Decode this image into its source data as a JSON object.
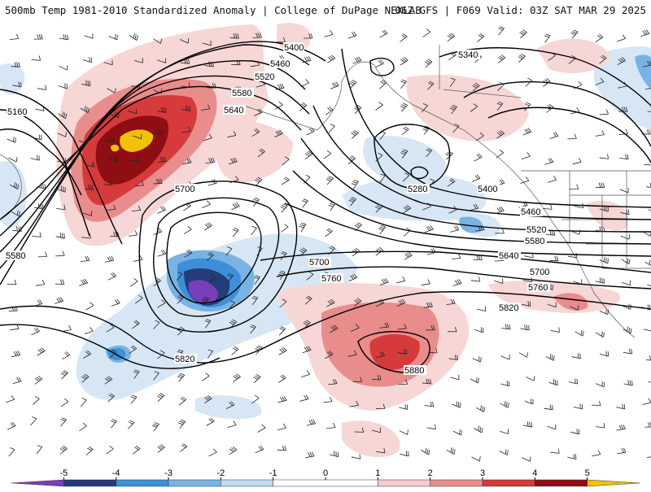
{
  "header": {
    "title_left": "500mb Temp 1981-2010 Standardized Anomaly | College of DuPage NEXLAB",
    "title_right": "06Z GFS | F069 Valid: 03Z SAT MAR 29 2025"
  },
  "contour_labels": [
    "5400",
    "5460",
    "5520",
    "5580",
    "5640",
    "5160",
    "5700",
    "5580",
    "5700",
    "5760",
    "5820",
    "5340",
    "5280",
    "5400",
    "5460",
    "5520",
    "5580",
    "5640",
    "5700",
    "5760",
    "5820",
    "5880"
  ],
  "colorbar": {
    "ticks": [
      "-5",
      "-4",
      "-3",
      "-2",
      "-1",
      "0",
      "1",
      "2",
      "3",
      "4",
      "5"
    ],
    "colors": [
      "#7a3fb8",
      "#243c7a",
      "#3c8fd8",
      "#79b3e3",
      "#c3dbef",
      "#ffffff",
      "#f5cccc",
      "#e98c8c",
      "#d63a3a",
      "#8e0e14",
      "#f2c200"
    ]
  }
}
